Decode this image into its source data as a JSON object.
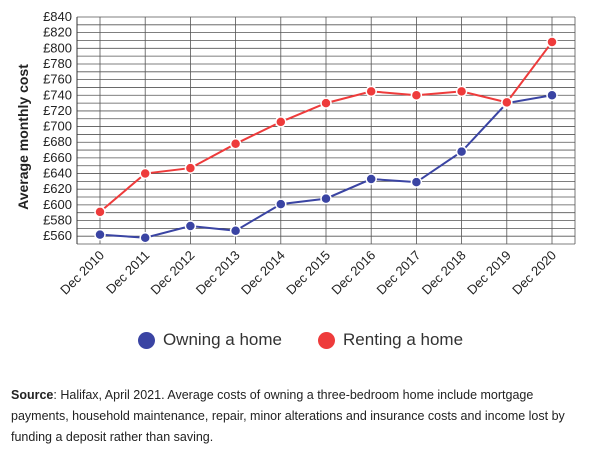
{
  "chart_data": {
    "type": "line",
    "ylabel": "Average monthly cost",
    "categories": [
      "Dec 2010",
      "Dec 2011",
      "Dec 2012",
      "Dec 2013",
      "Dec 2014",
      "Dec 2015",
      "Dec 2016",
      "Dec 2017",
      "Dec 2018",
      "Dec 2019",
      "Dec 2020"
    ],
    "y_ticks": [
      "£560",
      "£580",
      "£600",
      "£620",
      "£640",
      "£660",
      "£680",
      "£700",
      "£720",
      "£740",
      "£760",
      "£780",
      "£800",
      "£820",
      "£840"
    ],
    "ylim": [
      550,
      840
    ],
    "grid": true,
    "legend_position": "bottom",
    "series": [
      {
        "name": "Owning a home",
        "color": "#3a44a3",
        "values": [
          562,
          558,
          573,
          567,
          601,
          608,
          633,
          629,
          668,
          730,
          740
        ]
      },
      {
        "name": "Renting a home",
        "color": "#ee3b3b",
        "values": [
          591,
          640,
          647,
          678,
          706,
          730,
          745,
          740,
          745,
          731,
          808
        ]
      }
    ]
  },
  "legend": {
    "owning": "Owning a home",
    "renting": "Renting a home"
  },
  "source": {
    "label": "Source",
    "text": ": Halifax, April 2021. Average costs of owning a three-bedroom home include mortgage payments, household maintenance, repair, minor alterations and insurance costs and income lost by funding a deposit rather than saving."
  }
}
